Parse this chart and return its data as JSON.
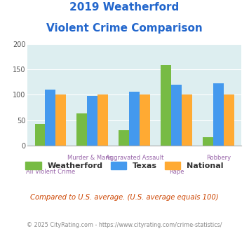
{
  "title_line1": "2019 Weatherford",
  "title_line2": "Violent Crime Comparison",
  "categories": [
    "All Violent Crime",
    "Murder & Mans...",
    "Aggravated Assault",
    "Rape",
    "Robbery"
  ],
  "cat_labels_row1": [
    "",
    "Murder & Mans...",
    "Aggravated Assault",
    "",
    "Robbery"
  ],
  "cat_labels_row2": [
    "All Violent Crime",
    "",
    "",
    "Rape",
    ""
  ],
  "weatherford": [
    42,
    63,
    30,
    158,
    16
  ],
  "texas": [
    110,
    98,
    106,
    120,
    123
  ],
  "national": [
    100,
    100,
    100,
    100,
    100
  ],
  "color_weatherford": "#77bb44",
  "color_texas": "#4499ee",
  "color_national": "#ffaa33",
  "ylim": [
    0,
    200
  ],
  "yticks": [
    0,
    50,
    100,
    150,
    200
  ],
  "bg_color": "#ddeef0",
  "title_color": "#2266cc",
  "xlabel_color": "#9966aa",
  "note_text": "Compared to U.S. average. (U.S. average equals 100)",
  "note_color": "#cc4400",
  "footer_text": "© 2025 CityRating.com - https://www.cityrating.com/crime-statistics/",
  "footer_color": "#888888",
  "legend_labels": [
    "Weatherford",
    "Texas",
    "National"
  ]
}
